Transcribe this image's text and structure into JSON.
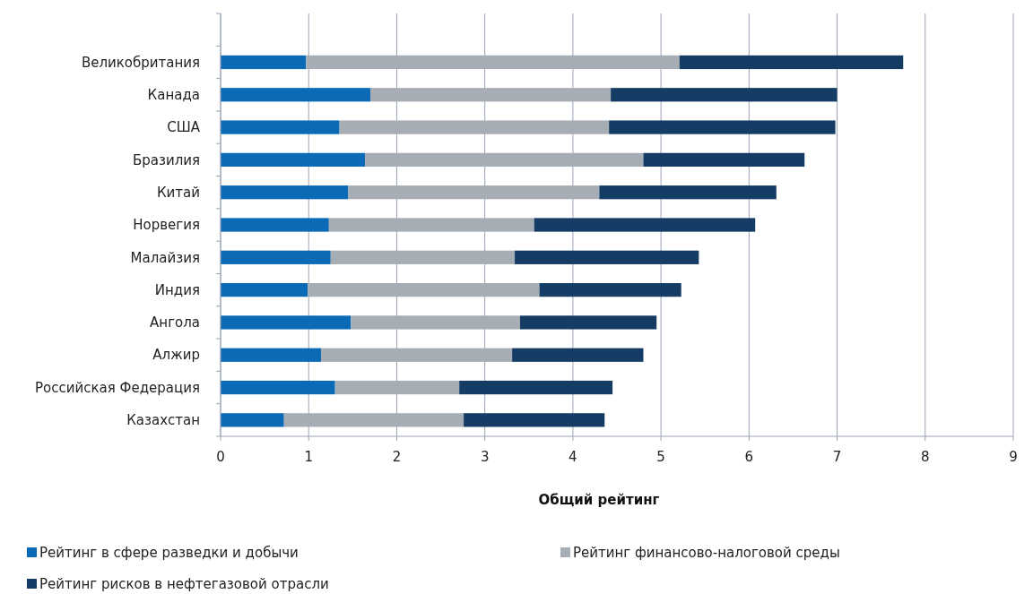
{
  "chart_data": {
    "type": "bar",
    "orientation": "horizontal",
    "stacked": true,
    "xlabel": "Общий рейтинг",
    "categories": [
      "Великобритания",
      "Канада",
      "США",
      "Бразилия",
      "Китай",
      "Норвегия",
      "Малайзия",
      "Индия",
      "Ангола",
      "Алжир",
      "Российская Федерация",
      "Казахстан"
    ],
    "series": [
      {
        "name": "Рейтинг в сфере разведки и добычи",
        "color": "#0a6ab6",
        "values": [
          0.97,
          1.7,
          1.35,
          1.64,
          1.45,
          1.23,
          1.25,
          0.99,
          1.48,
          1.14,
          1.3,
          0.72
        ]
      },
      {
        "name": "Рейтинг финансово-налоговой среды",
        "color": "#a6adb4",
        "values": [
          4.24,
          2.73,
          3.06,
          3.16,
          2.85,
          2.33,
          2.09,
          2.63,
          1.92,
          2.17,
          1.41,
          2.04
        ]
      },
      {
        "name": "Рейтинг рисков в нефтегазовой отрасли",
        "color": "#143c64",
        "values": [
          2.54,
          2.57,
          2.57,
          1.83,
          2.01,
          2.51,
          2.09,
          1.61,
          1.55,
          1.49,
          1.74,
          1.6
        ]
      }
    ],
    "xlim": [
      0,
      9
    ],
    "xticks": [
      0,
      1,
      2,
      3,
      4,
      5,
      6,
      7,
      8,
      9
    ],
    "grid": "x",
    "legend": "bottom"
  }
}
